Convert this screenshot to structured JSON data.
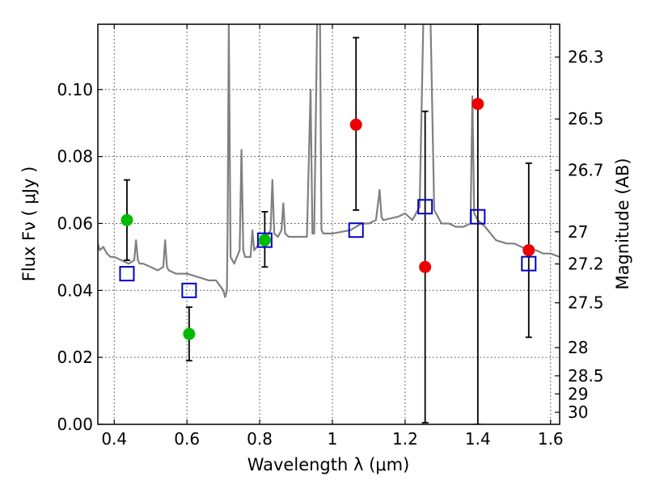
{
  "chart_data": {
    "type": "scatter",
    "title": "",
    "xlabel": "Wavelength  λ (μm)",
    "ylabel": "Flux  Fν  ( μJy )",
    "y2label": "Magnitude (AB)",
    "xlim": [
      0.355,
      1.625
    ],
    "ylim": [
      0.0,
      0.1195
    ],
    "grid": true,
    "x_ticks": [
      0.4,
      0.6,
      0.8,
      1.0,
      1.2,
      1.4,
      1.6
    ],
    "x_tick_labels": [
      "0.4",
      "0.6",
      "0.8",
      "1",
      "1.2",
      "1.4",
      "1.6"
    ],
    "y_ticks": [
      0.0,
      0.02,
      0.04,
      0.06,
      0.08,
      0.1
    ],
    "y_tick_labels": [
      "0.00",
      "0.02",
      "0.04",
      "0.06",
      "0.08",
      "0.10"
    ],
    "y2_ticks": [
      {
        "label": "26.3",
        "flux": 0.1097
      },
      {
        "label": "26.5",
        "flux": 0.0912
      },
      {
        "label": "26.7",
        "flux": 0.0759
      },
      {
        "label": "27",
        "flux": 0.0575
      },
      {
        "label": "27.2",
        "flux": 0.0479
      },
      {
        "label": "27.5",
        "flux": 0.0363
      },
      {
        "label": "28",
        "flux": 0.0229
      },
      {
        "label": "28.5",
        "flux": 0.0145
      },
      {
        "label": "29",
        "flux": 0.0091
      },
      {
        "label": "30",
        "flux": 0.0036
      }
    ],
    "colors": {
      "model": "#808080",
      "green_points": "#00bb00",
      "red_points": "#ee0000",
      "model_photometry": "#0000cc",
      "errorbar": "#000000"
    },
    "series": [
      {
        "kind": "model_spectrum",
        "color": "#808080",
        "x": [
          0.355,
          0.36,
          0.37,
          0.38,
          0.39,
          0.4,
          0.42,
          0.44,
          0.455,
          0.46,
          0.465,
          0.47,
          0.48,
          0.5,
          0.52,
          0.535,
          0.54,
          0.545,
          0.55,
          0.57,
          0.6,
          0.63,
          0.66,
          0.68,
          0.7,
          0.705,
          0.71,
          0.712,
          0.715,
          0.72,
          0.73,
          0.745,
          0.75,
          0.755,
          0.76,
          0.775,
          0.78,
          0.785,
          0.8,
          0.82,
          0.83,
          0.835,
          0.84,
          0.85,
          0.86,
          0.865,
          0.87,
          0.88,
          0.9,
          0.93,
          0.94,
          0.945,
          0.95,
          0.958,
          0.962,
          0.966,
          0.97,
          0.975,
          1.0,
          1.05,
          1.08,
          1.1,
          1.12,
          1.13,
          1.135,
          1.14,
          1.18,
          1.2,
          1.22,
          1.24,
          1.25,
          1.26,
          1.27,
          1.28,
          1.3,
          1.32,
          1.34,
          1.36,
          1.38,
          1.385,
          1.39,
          1.4,
          1.42,
          1.45,
          1.48,
          1.5,
          1.52,
          1.54,
          1.56,
          1.58,
          1.6,
          1.625
        ],
        "y": [
          0.054,
          0.052,
          0.053,
          0.051,
          0.05,
          0.05,
          0.049,
          0.048,
          0.049,
          0.055,
          0.049,
          0.048,
          0.048,
          0.047,
          0.046,
          0.047,
          0.055,
          0.047,
          0.046,
          0.045,
          0.045,
          0.044,
          0.043,
          0.043,
          0.04,
          0.038,
          0.04,
          0.06,
          0.12,
          0.05,
          0.048,
          0.052,
          0.082,
          0.052,
          0.05,
          0.05,
          0.058,
          0.052,
          0.054,
          0.056,
          0.058,
          0.073,
          0.057,
          0.056,
          0.058,
          0.066,
          0.057,
          0.056,
          0.056,
          0.056,
          0.1,
          0.057,
          0.057,
          0.12,
          0.12,
          0.12,
          0.058,
          0.057,
          0.057,
          0.058,
          0.06,
          0.06,
          0.061,
          0.07,
          0.062,
          0.061,
          0.062,
          0.063,
          0.061,
          0.065,
          0.12,
          0.12,
          0.12,
          0.064,
          0.06,
          0.06,
          0.059,
          0.059,
          0.06,
          0.098,
          0.063,
          0.061,
          0.059,
          0.055,
          0.054,
          0.054,
          0.053,
          0.052,
          0.052,
          0.051,
          0.051,
          0.05
        ]
      },
      {
        "kind": "observed",
        "color": "#00bb00",
        "points": [
          {
            "x": 0.435,
            "y": 0.061,
            "err_lo": 0.049,
            "err_hi": 0.073
          },
          {
            "x": 0.606,
            "y": 0.027,
            "err_lo": 0.019,
            "err_hi": 0.035
          },
          {
            "x": 0.814,
            "y": 0.055,
            "err_lo": 0.047,
            "err_hi": 0.0635
          }
        ]
      },
      {
        "kind": "observed",
        "color": "#ee0000",
        "points": [
          {
            "x": 1.065,
            "y": 0.0895,
            "err_lo": 0.064,
            "err_hi": 0.1155
          },
          {
            "x": 1.255,
            "y": 0.047,
            "err_lo": 0.0005,
            "err_hi": 0.0935
          },
          {
            "x": 1.4,
            "y": 0.0957,
            "err_lo": 0.0,
            "err_hi": 0.1195
          },
          {
            "x": 1.54,
            "y": 0.052,
            "err_lo": 0.026,
            "err_hi": 0.078
          }
        ]
      },
      {
        "kind": "model_photometry",
        "color": "#0000cc",
        "points": [
          {
            "x": 0.435,
            "y": 0.045
          },
          {
            "x": 0.606,
            "y": 0.04
          },
          {
            "x": 0.814,
            "y": 0.055
          },
          {
            "x": 1.065,
            "y": 0.058
          },
          {
            "x": 1.255,
            "y": 0.065
          },
          {
            "x": 1.4,
            "y": 0.062
          },
          {
            "x": 1.54,
            "y": 0.048
          }
        ]
      }
    ]
  }
}
